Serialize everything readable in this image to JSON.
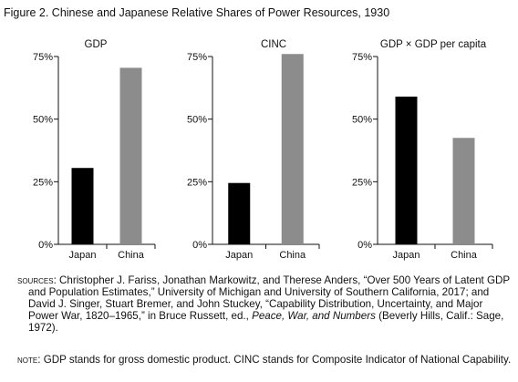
{
  "figure_title": "Figure 2.  Chinese and Japanese Relative Shares of Power Resources, 1930",
  "chart_data": [
    {
      "type": "bar",
      "title": "GDP",
      "categories": [
        "Japan",
        "China"
      ],
      "values": [
        30.5,
        70.5
      ],
      "ylim": [
        0,
        75
      ],
      "yticks": [
        0,
        25,
        50,
        75
      ],
      "yticklabels": [
        "0%",
        "25%",
        "50%",
        "75%"
      ],
      "colors": [
        "#000000",
        "#8c8c8c"
      ],
      "grid": false
    },
    {
      "type": "bar",
      "title": "CINC",
      "categories": [
        "Japan",
        "China"
      ],
      "values": [
        24.5,
        76
      ],
      "ylim": [
        0,
        75
      ],
      "yticks": [
        0,
        25,
        50,
        75
      ],
      "yticklabels": [
        "0%",
        "25%",
        "50%",
        "75%"
      ],
      "colors": [
        "#000000",
        "#8c8c8c"
      ],
      "grid": false
    },
    {
      "type": "bar",
      "title": "GDP × GDP per capita",
      "categories": [
        "Japan",
        "China"
      ],
      "values": [
        59,
        42.5
      ],
      "ylim": [
        0,
        75
      ],
      "yticks": [
        0,
        25,
        50,
        75
      ],
      "yticklabels": [
        "0%",
        "25%",
        "50%",
        "75%"
      ],
      "colors": [
        "#000000",
        "#8c8c8c"
      ],
      "grid": false
    }
  ],
  "sources": {
    "label": "Sources:",
    "text_1": "Christopher J. Fariss, Jonathan Markowitz, and Therese Anders, “Over 500 Years of Latent GDP and Population Estimates,” University of Michigan and University of Southern California, 2017; and David J. Singer, Stuart Bremer, and John Stuckey, “Capability Distribution, Uncertainty, and Major Power War, 1820–1965,” in Bruce Russett, ed., ",
    "book_title": "Peace, War, and Numbers",
    "text_2": " (Beverly Hills, Calif.: Sage, 1972)."
  },
  "note": {
    "label": "Note:",
    "text": "GDP stands for gross domestic product. CINC stands for Composite Indicator of National Capability."
  }
}
